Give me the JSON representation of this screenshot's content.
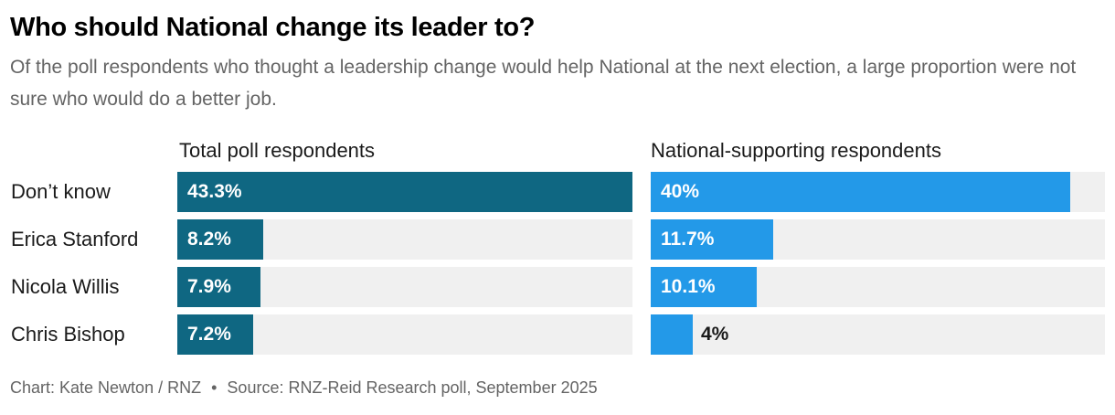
{
  "header": {
    "title": "Who should National change its leader to?",
    "subtitle": "Of the poll respondents who thought a leadership change would help National at the next election, a large proportion were not sure who would do a better job."
  },
  "footer": {
    "credit": "Chart: Kate Newton / RNZ",
    "separator": "•",
    "source": "Source: RNZ-Reid Research poll, September 2025"
  },
  "chart_data": {
    "type": "bar",
    "orientation": "horizontal",
    "categories": [
      "Don’t know",
      "Erica Stanford",
      "Nicola Willis",
      "Chris Bishop"
    ],
    "series": [
      {
        "name": "Total poll respondents",
        "values": [
          43.3,
          8.2,
          7.9,
          7.2
        ],
        "labels": [
          "43.3%",
          "8.2%",
          "7.9%",
          "7.2%"
        ],
        "color": "#0f6782"
      },
      {
        "name": "National-supporting respondents",
        "values": [
          40,
          11.7,
          10.1,
          4
        ],
        "labels": [
          "40%",
          "11.7%",
          "10.1%",
          "4%"
        ],
        "color": "#2399e8"
      }
    ],
    "xlim": [
      0,
      43.3
    ],
    "track_color": "#f0f0f0",
    "grid": false,
    "legend": "none"
  }
}
